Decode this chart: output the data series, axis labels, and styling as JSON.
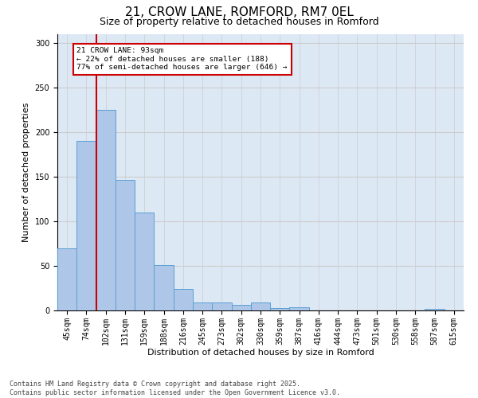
{
  "title_line1": "21, CROW LANE, ROMFORD, RM7 0EL",
  "title_line2": "Size of property relative to detached houses in Romford",
  "xlabel": "Distribution of detached houses by size in Romford",
  "ylabel": "Number of detached properties",
  "categories": [
    "45sqm",
    "74sqm",
    "102sqm",
    "131sqm",
    "159sqm",
    "188sqm",
    "216sqm",
    "245sqm",
    "273sqm",
    "302sqm",
    "330sqm",
    "359sqm",
    "387sqm",
    "416sqm",
    "444sqm",
    "473sqm",
    "501sqm",
    "530sqm",
    "558sqm",
    "587sqm",
    "615sqm"
  ],
  "values": [
    70,
    190,
    225,
    146,
    110,
    51,
    24,
    9,
    9,
    6,
    9,
    3,
    4,
    0,
    0,
    0,
    0,
    0,
    0,
    2,
    0
  ],
  "bar_color": "#aec6e8",
  "bar_edge_color": "#5a9fd4",
  "vline_x_index": 1,
  "vline_color": "#cc0000",
  "annotation_text": "21 CROW LANE: 93sqm\n← 22% of detached houses are smaller (188)\n77% of semi-detached houses are larger (646) →",
  "annotation_box_color": "#cc0000",
  "annotation_text_color": "#000000",
  "ylim": [
    0,
    310
  ],
  "yticks": [
    0,
    50,
    100,
    150,
    200,
    250,
    300
  ],
  "grid_color": "#cccccc",
  "bg_color": "#dde8f5",
  "footer_line1": "Contains HM Land Registry data © Crown copyright and database right 2025.",
  "footer_line2": "Contains public sector information licensed under the Open Government Licence v3.0.",
  "title_fontsize": 11,
  "subtitle_fontsize": 9,
  "tick_fontsize": 7,
  "label_fontsize": 8,
  "footer_fontsize": 6
}
